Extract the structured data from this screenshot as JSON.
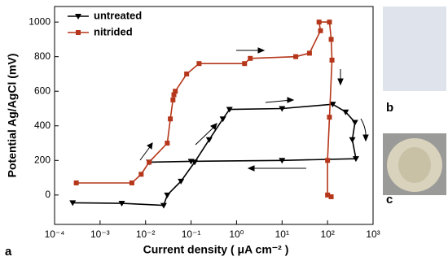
{
  "chart_data": {
    "type": "line",
    "xlabel": "Current density ( μA cm⁻² )",
    "ylabel": "Potential Ag/AgCl (mV)",
    "log_x": true,
    "legend": "upper left",
    "xlim": [
      0.0001,
      1000
    ],
    "xticks": [
      {
        "value": 0.0001,
        "label": "10⁻⁴"
      },
      {
        "value": 0.001,
        "label": "10⁻³"
      },
      {
        "value": 0.01,
        "label": "10⁻²"
      },
      {
        "value": 0.1,
        "label": "10⁻¹"
      },
      {
        "value": 1,
        "label": "10⁰"
      },
      {
        "value": 10,
        "label": "10¹"
      },
      {
        "value": 100,
        "label": "10²"
      },
      {
        "value": 1000,
        "label": "10³"
      }
    ],
    "ylim": [
      -170,
      1090
    ],
    "yticks": [
      0,
      200,
      400,
      600,
      800,
      1000
    ],
    "series": [
      {
        "name": "untreated",
        "color": "#000000",
        "marker": "triangle-down",
        "x": [
          0.00025,
          0.003,
          0.025,
          0.03,
          0.06,
          0.12,
          0.25,
          0.5,
          0.7,
          10,
          130,
          250,
          400,
          350,
          420,
          10,
          0.1,
          0.012
        ],
        "y": [
          -45,
          -48,
          -60,
          0,
          80,
          190,
          320,
          440,
          495,
          500,
          525,
          480,
          420,
          320,
          210,
          200,
          195,
          190
        ]
      },
      {
        "name": "nitrided",
        "color": "#b5361a",
        "marker": "square",
        "x": [
          0.0003,
          0.005,
          0.008,
          0.012,
          0.03,
          0.035,
          0.04,
          0.042,
          0.045,
          0.08,
          0.15,
          1.5,
          2,
          20,
          40,
          70,
          65,
          110,
          120,
          125,
          110,
          100,
          100,
          120
        ],
        "y": [
          70,
          70,
          120,
          190,
          300,
          440,
          550,
          580,
          600,
          700,
          760,
          760,
          790,
          800,
          820,
          950,
          1000,
          1000,
          900,
          780,
          450,
          200,
          0,
          -10
        ]
      }
    ]
  },
  "panels": {
    "a": "a",
    "b": "b",
    "c": "c"
  }
}
